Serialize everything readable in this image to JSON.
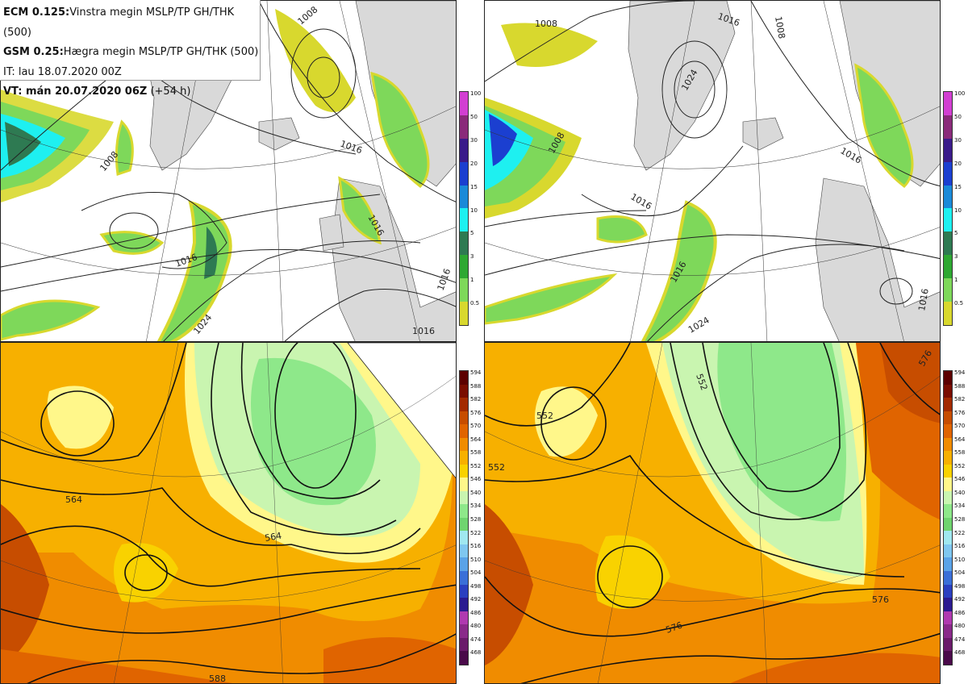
{
  "header": {
    "line1_bold": "ECM 0.125:",
    "line1_text": "Vinstra megin MSLP/TP GH/THK (500)",
    "line2_bold": "GSM 0.25:",
    "line2_text": "Hægra megin MSLP/TP GH/THK (500)",
    "line3_text": "IT: lau 18.07.2020 00Z",
    "line4_bold": "VT: mán 20.07.2020 06Z",
    "line4_text": " (+54 h)"
  },
  "precip_scale": {
    "labels": [
      "100",
      "50",
      "30",
      "20",
      "15",
      "10",
      "5",
      "3",
      "1",
      "0.5"
    ],
    "colors": [
      "#d23fd2",
      "#8a2a7a",
      "#3a1b8a",
      "#1b3fd0",
      "#1b8ad8",
      "#1ef0f0",
      "#2e7a52",
      "#2ea832",
      "#7ed85a",
      "#d8d82e"
    ]
  },
  "thickness_scale": {
    "labels": [
      "594",
      "588",
      "582",
      "576",
      "570",
      "564",
      "558",
      "552",
      "546",
      "540",
      "534",
      "528",
      "522",
      "516",
      "510",
      "504",
      "498",
      "492",
      "486",
      "480",
      "474",
      "468"
    ],
    "colors": [
      "#5c0000",
      "#7a0d00",
      "#a32a00",
      "#c74d00",
      "#e06400",
      "#f08c00",
      "#f7b000",
      "#f9d200",
      "#fff78a",
      "#c9f5b0",
      "#8ee88a",
      "#6fd46f",
      "#a0e8f0",
      "#7fc7f0",
      "#5aa3e8",
      "#3a6fd8",
      "#2a3fc0",
      "#2a1a90",
      "#b03ab0",
      "#8a2a8a",
      "#6a1a6a",
      "#4a0a4a"
    ]
  },
  "contour_labels": {
    "top_left": [
      "1008",
      "1008",
      "1016",
      "1016",
      "1016",
      "1016",
      "1024",
      "1016"
    ],
    "top_right": [
      "1008",
      "1016",
      "1024",
      "1008",
      "1016",
      "1016",
      "1024",
      "1016",
      "1008",
      "1016"
    ],
    "bottom_left": [
      "564",
      "564",
      "588"
    ],
    "bottom_right": [
      "552",
      "552",
      "552",
      "576",
      "576",
      "576"
    ]
  }
}
